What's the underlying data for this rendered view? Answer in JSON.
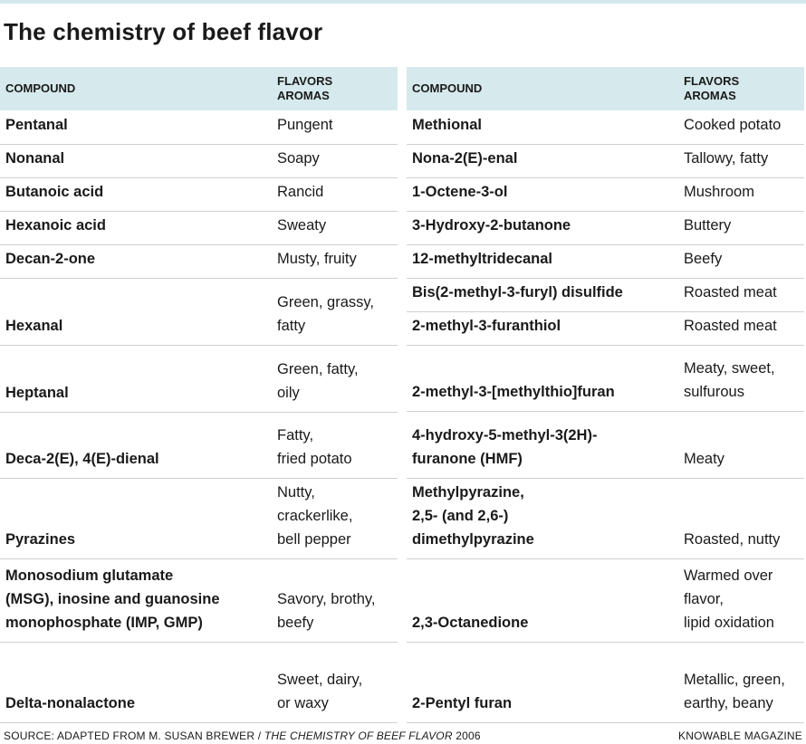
{
  "title": "The chemistry of beef flavor",
  "headers": {
    "compound": "COMPOUND",
    "flavors_line1": "FLAVORS",
    "flavors_line2": "AROMAS"
  },
  "left_rows": [
    {
      "compound": "Pentanal",
      "flavor": "Pungent"
    },
    {
      "compound": "Nonanal",
      "flavor": "Soapy"
    },
    {
      "compound": "Butanoic acid",
      "flavor": "Rancid"
    },
    {
      "compound": "Hexanoic acid",
      "flavor": "Sweaty"
    },
    {
      "compound": "Decan-2-one",
      "flavor": "Musty, fruity"
    },
    {
      "compound": "Hexanal",
      "flavor": "Green, grassy,\nfatty"
    },
    {
      "compound": "Heptanal",
      "flavor": "Green, fatty,\noily"
    },
    {
      "compound": "Deca-2(E), 4(E)-dienal",
      "flavor": "Fatty,\nfried potato"
    },
    {
      "compound": "Pyrazines",
      "flavor": "Nutty,\ncrackerlike,\nbell pepper"
    },
    {
      "compound": "Monosodium glutamate\n(MSG), inosine and guanosine\nmonophosphate (IMP, GMP)",
      "flavor": "Savory, brothy,\nbeefy"
    },
    {
      "compound": "Delta-nonalactone",
      "flavor": "Sweet, dairy,\nor waxy"
    }
  ],
  "right_rows": [
    {
      "compound": "Methional",
      "flavor": "Cooked potato"
    },
    {
      "compound": "Nona-2(E)-enal",
      "flavor": "Tallowy, fatty"
    },
    {
      "compound": "1-Octene-3-ol",
      "flavor": "Mushroom"
    },
    {
      "compound": "3-Hydroxy-2-butanone",
      "flavor": "Buttery"
    },
    {
      "compound": "12-methyltridecanal",
      "flavor": "Beefy"
    },
    {
      "compound": "Bis(2-methyl-3-furyl) disulfide",
      "flavor": "Roasted meat"
    },
    {
      "compound": "2-methyl-3-furanthiol",
      "flavor": "Roasted meat"
    },
    {
      "compound": "2-methyl-3-[methylthio]furan",
      "flavor": "Meaty, sweet,\nsulfurous"
    },
    {
      "compound": "4-hydroxy-5-methyl-3(2H)-\nfuranone (HMF)",
      "flavor": "Meaty"
    },
    {
      "compound": "Methylpyrazine,\n2,5- (and 2,6-)\ndimethylpyrazine",
      "flavor": "Roasted, nutty"
    },
    {
      "compound": "2,3-Octanedione",
      "flavor": "Warmed over\nflavor,\nlipid oxidation"
    },
    {
      "compound": "2-Pentyl furan",
      "flavor": "Metallic, green,\nearthy, beany"
    }
  ],
  "source": {
    "prefix": "SOURCE: ADAPTED FROM M. SUSAN BREWER / ",
    "work": "THE CHEMISTRY OF BEEF FLAVOR",
    "year": " 2006"
  },
  "brand": "KNOWABLE MAGAZINE",
  "colors": {
    "header_bg": "#d6e9ed",
    "rule": "#cfcfcf",
    "text": "#1a1a1a"
  }
}
